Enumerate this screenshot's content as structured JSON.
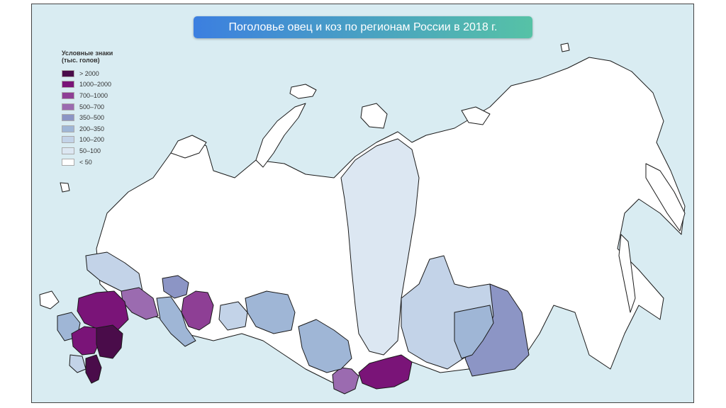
{
  "title": "Поголовье овец и коз по регионам России в 2018 г.",
  "colors": {
    "title_gradient_start": "#3c7fe0",
    "title_gradient_end": "#56c2a6",
    "water": "#d9ecf2",
    "region_border": "#1a1a1a"
  },
  "legend": {
    "title": "Условные знаки",
    "subtitle": "(тыс. голов)",
    "items": [
      {
        "label": "> 2000",
        "color": "#4a0c4a"
      },
      {
        "label": "1000–2000",
        "color": "#7a1478"
      },
      {
        "label": "700–1000",
        "color": "#8e3f95"
      },
      {
        "label": "500–700",
        "color": "#9b6bb0"
      },
      {
        "label": "350–500",
        "color": "#8c95c5"
      },
      {
        "label": "200–350",
        "color": "#9fb6d6"
      },
      {
        "label": "100–200",
        "color": "#c3d3e8"
      },
      {
        "label": "50–100",
        "color": "#dce7f2"
      },
      {
        "label": "< 50",
        "color": "#ffffff"
      }
    ]
  }
}
